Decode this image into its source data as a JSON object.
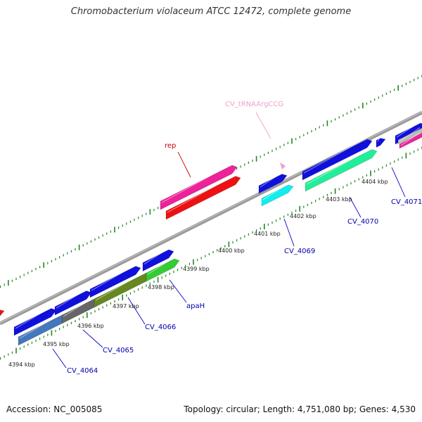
{
  "title": "Chromobacterium violaceum ATCC 12472, complete genome",
  "footer": {
    "accession": "Accession: NC_005085",
    "summary": "Topology: circular; Length: 4,751,080 bp; Genes: 4,530"
  },
  "kbp_labels": [
    "4394 kbp",
    "4395 kbp",
    "4396 kbp",
    "4397 kbp",
    "4398 kbp",
    "4399 kbp",
    "4400 kbp",
    "4401 kbp",
    "4402 kbp",
    "4403 kbp",
    "4404 kbp"
  ],
  "gene_labels": [
    {
      "text": "CV_4064",
      "color": "#0000aa"
    },
    {
      "text": "CV_4065",
      "color": "#0000aa"
    },
    {
      "text": "CV_4066",
      "color": "#0000aa"
    },
    {
      "text": "apaH",
      "color": "#0000aa"
    },
    {
      "text": "CV_4069",
      "color": "#0000aa"
    },
    {
      "text": "CV_4070",
      "color": "#0000aa"
    },
    {
      "text": "CV_4071",
      "color": "#0000aa"
    },
    {
      "text": "rep",
      "color": "#cc0000"
    },
    {
      "text": "CV_tRNAArgCCG",
      "color": "#f0a0c8"
    }
  ],
  "colors": {
    "backbone": "#999999",
    "ticks": "#228822",
    "gene_blue": "#1010dd",
    "rep_top": "#ee2299",
    "rep_bottom": "#ee1111",
    "cv4064_bottom": "#4477bb",
    "cv4065_bottom": "#666666",
    "cv4066_bottom": "#668822",
    "apah_bottom": "#33cc33",
    "cv4069_bottom": "#11eeee",
    "cv4070_bottom": "#22ee99",
    "cv4071_bottom": "#ee2299",
    "grey_gene": "#bbbbbb",
    "trna": "#f0a0c8"
  }
}
